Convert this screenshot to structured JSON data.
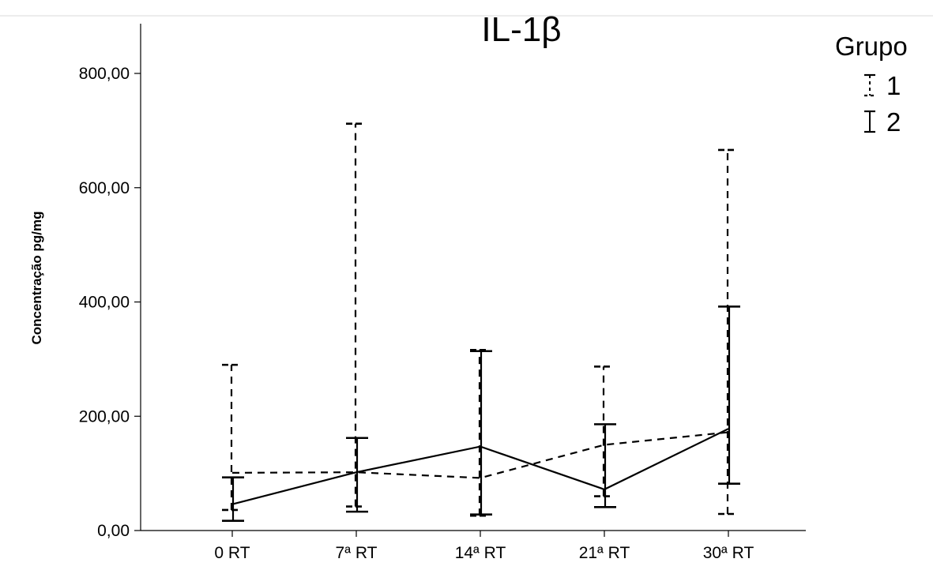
{
  "chart_data": {
    "type": "line",
    "title": "IL-1β",
    "xlabel": "",
    "ylabel": "Concentração pg/mg",
    "ylim": [
      0,
      800
    ],
    "yticks": [
      "0,00",
      "200,00",
      "400,00",
      "600,00",
      "800,00"
    ],
    "categories": [
      "0 RT",
      "7ª RT",
      "14ª RT",
      "21ª RT",
      "30ª RT"
    ],
    "legend": {
      "title": "Grupo",
      "position": "top-right"
    },
    "series": [
      {
        "name": "1",
        "line_style": "dashed",
        "mean": [
          101,
          102,
          92,
          150,
          172
        ],
        "lower": [
          36,
          42,
          26,
          60,
          29
        ],
        "upper": [
          290,
          712,
          316,
          287,
          666
        ]
      },
      {
        "name": "2",
        "line_style": "solid",
        "mean": [
          46,
          102,
          147,
          72,
          178
        ],
        "lower": [
          17,
          33,
          28,
          41,
          82
        ],
        "upper": [
          93,
          162,
          314,
          186,
          392
        ]
      }
    ]
  }
}
